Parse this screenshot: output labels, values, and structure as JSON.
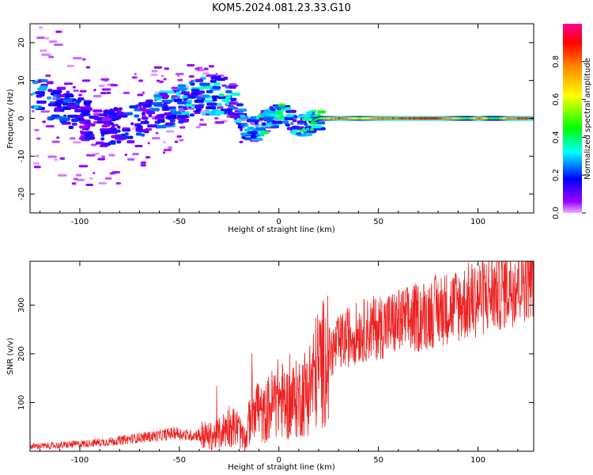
{
  "title": "KOM5.2024.081.23.33.G10",
  "colors": {
    "line": "#ee2222",
    "frame": "#000000",
    "background": "#ffffff"
  },
  "chart_data": [
    {
      "type": "heatmap",
      "xlabel": "Height of straight line (km)",
      "ylabel": "Frequency (Hz)",
      "xlim": [
        -125,
        128
      ],
      "ylim": [
        -25,
        25
      ],
      "xticks": [
        -100,
        -50,
        0,
        50,
        100
      ],
      "xtick_labels": [
        "-100",
        "-50",
        "0",
        "50",
        "100"
      ],
      "yticks": [
        -20,
        -10,
        0,
        10,
        20
      ],
      "ytick_labels": [
        "-20",
        "-10",
        "0",
        "10",
        "20"
      ],
      "colorbar": {
        "label": "Normalized spectral amplitude",
        "range": [
          0,
          1
        ],
        "ticks": [
          0.0,
          0.2,
          0.4,
          0.6,
          0.8
        ],
        "tick_labels": [
          "0.0",
          "0.2",
          "0.4",
          "0.6",
          "0.8"
        ],
        "colormap": "rainbow (violet to red)"
      },
      "ridge": [
        {
          "x": -100,
          "y": 0,
          "amp": 0.18
        },
        {
          "x": -90,
          "y": -3,
          "amp": 0.15
        },
        {
          "x": -80,
          "y": -2,
          "amp": 0.2
        },
        {
          "x": -70,
          "y": 0,
          "amp": 0.2
        },
        {
          "x": -60,
          "y": 2,
          "amp": 0.28
        },
        {
          "x": -50,
          "y": 4,
          "amp": 0.3
        },
        {
          "x": -40,
          "y": 6,
          "amp": 0.3
        },
        {
          "x": -30,
          "y": 6,
          "amp": 0.32
        },
        {
          "x": -25,
          "y": 5,
          "amp": 0.3
        },
        {
          "x": -20,
          "y": -2,
          "amp": 0.25
        },
        {
          "x": -15,
          "y": -3,
          "amp": 0.25
        },
        {
          "x": -10,
          "y": -1,
          "amp": 0.35
        },
        {
          "x": -5,
          "y": 0,
          "amp": 0.3
        },
        {
          "x": 0,
          "y": 1,
          "amp": 0.45
        },
        {
          "x": 5,
          "y": -1,
          "amp": 0.3
        },
        {
          "x": 10,
          "y": -2,
          "amp": 0.35
        },
        {
          "x": 15,
          "y": -1,
          "amp": 0.35
        },
        {
          "x": 20,
          "y": 0,
          "amp": 0.5
        },
        {
          "x": 30,
          "y": 0,
          "amp": 0.9
        },
        {
          "x": 40,
          "y": 0,
          "amp": 0.6
        },
        {
          "x": 50,
          "y": 0,
          "amp": 0.85
        },
        {
          "x": 60,
          "y": 0,
          "amp": 0.9
        },
        {
          "x": 70,
          "y": 0,
          "amp": 0.95
        },
        {
          "x": 80,
          "y": 0,
          "amp": 0.95
        },
        {
          "x": 90,
          "y": 0,
          "amp": 0.6
        },
        {
          "x": 95,
          "y": 0,
          "amp": 0.45
        },
        {
          "x": 100,
          "y": 0,
          "amp": 0.9
        },
        {
          "x": 105,
          "y": 0,
          "amp": 0.5
        },
        {
          "x": 110,
          "y": 0,
          "amp": 0.5
        },
        {
          "x": 115,
          "y": 0,
          "amp": 0.85
        },
        {
          "x": 128,
          "y": 0,
          "amp": 0.9
        }
      ]
    },
    {
      "type": "line",
      "xlabel": "Height of straight line (km)",
      "ylabel": "SNR (v/v)",
      "xlim": [
        -125,
        128
      ],
      "ylim": [
        0,
        390
      ],
      "xticks": [
        -100,
        -50,
        0,
        50,
        100
      ],
      "xtick_labels": [
        "-100",
        "-50",
        "0",
        "50",
        "100"
      ],
      "yticks": [
        100,
        200,
        300
      ],
      "ytick_labels": [
        "100",
        "200",
        "300"
      ],
      "series": [
        {
          "x": [
            -125,
            -110,
            -100,
            -90,
            -80,
            -70,
            -60,
            -52,
            -45,
            -40,
            -35,
            -30,
            -25,
            -20,
            -17,
            -15,
            -12,
            -10,
            -8,
            -5,
            0,
            5,
            10,
            15,
            20,
            22,
            25,
            30,
            35,
            40,
            50,
            60,
            70,
            80,
            90,
            100,
            110,
            120,
            128
          ],
          "y": [
            10,
            12,
            15,
            18,
            22,
            28,
            32,
            38,
            32,
            35,
            30,
            35,
            55,
            45,
            15,
            60,
            110,
            85,
            70,
            90,
            110,
            95,
            110,
            130,
            175,
            180,
            200,
            220,
            235,
            245,
            255,
            265,
            275,
            290,
            300,
            315,
            330,
            350,
            370
          ]
        }
      ]
    }
  ]
}
